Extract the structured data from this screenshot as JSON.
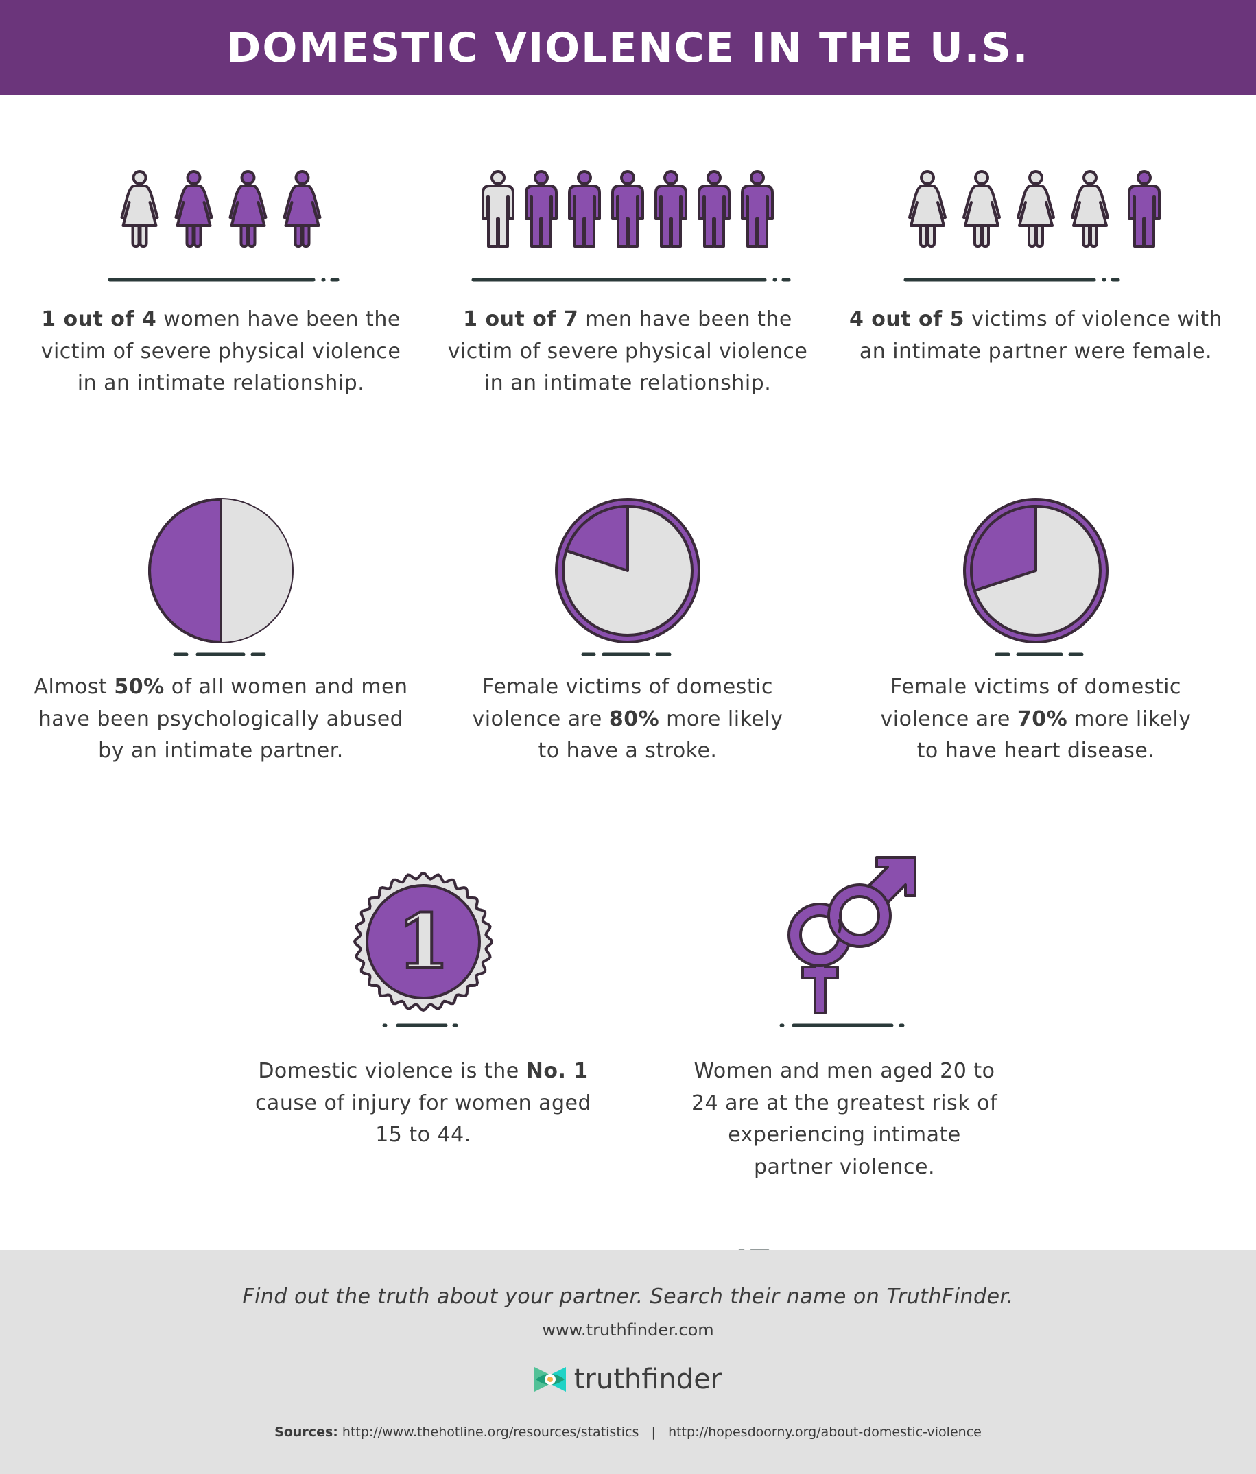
{
  "header": {
    "title": "DOMESTIC VIOLENCE IN THE U.S."
  },
  "colors": {
    "purple": "#8a4fad",
    "header": "#6b357b",
    "outline": "#3a2a3a",
    "light": "#e1e1e1",
    "rule": "#2b3a3a"
  },
  "people_stats": [
    {
      "figure": "woman",
      "total": 4,
      "filled": 3,
      "bold": "1 out of 4",
      "text": " women have been the victim of severe physical violence in an intimate relationship."
    },
    {
      "figure": "man",
      "total": 7,
      "filled": 6,
      "bold": "1 out of 7",
      "text": " men have been the victim of severe physical violence in an intimate relationship."
    },
    {
      "figure": "mixed",
      "total": 5,
      "filled": 1,
      "bold": "4 out of 5",
      "text": " victims of violence with an intimate partner were female."
    }
  ],
  "pie_stats": [
    {
      "fraction": 0.5,
      "before": "Almost ",
      "bold": "50%",
      "after": " of all women and men have been psychologically abused by an intimate partner."
    },
    {
      "fraction": 0.2,
      "before": "Female victims of domestic violence are ",
      "bold": "80%",
      "after": " more likely to have a stroke."
    },
    {
      "fraction": 0.3,
      "before": "Female victims of domestic violence are ",
      "bold": "70%",
      "after": " more likely to have heart disease."
    }
  ],
  "badge": {
    "number": "1",
    "before": "Domestic violence is the ",
    "bold": "No. 1",
    "after": " cause of injury for women aged 15 to 44."
  },
  "gender": {
    "text": "Women and men aged 20 to 24 are at the greatest risk of experiencing intimate partner violence."
  },
  "footer": {
    "tagline": "Find out the truth about your partner. Search their name on TruthFinder.",
    "url": "www.truthfinder.com",
    "logo_text": "truthfinder",
    "sources_label": "Sources:",
    "source1": "http://www.thehotline.org/resources/statistics",
    "separator": "|",
    "source2": "http://hopesdoorny.org/about-domestic-violence"
  }
}
